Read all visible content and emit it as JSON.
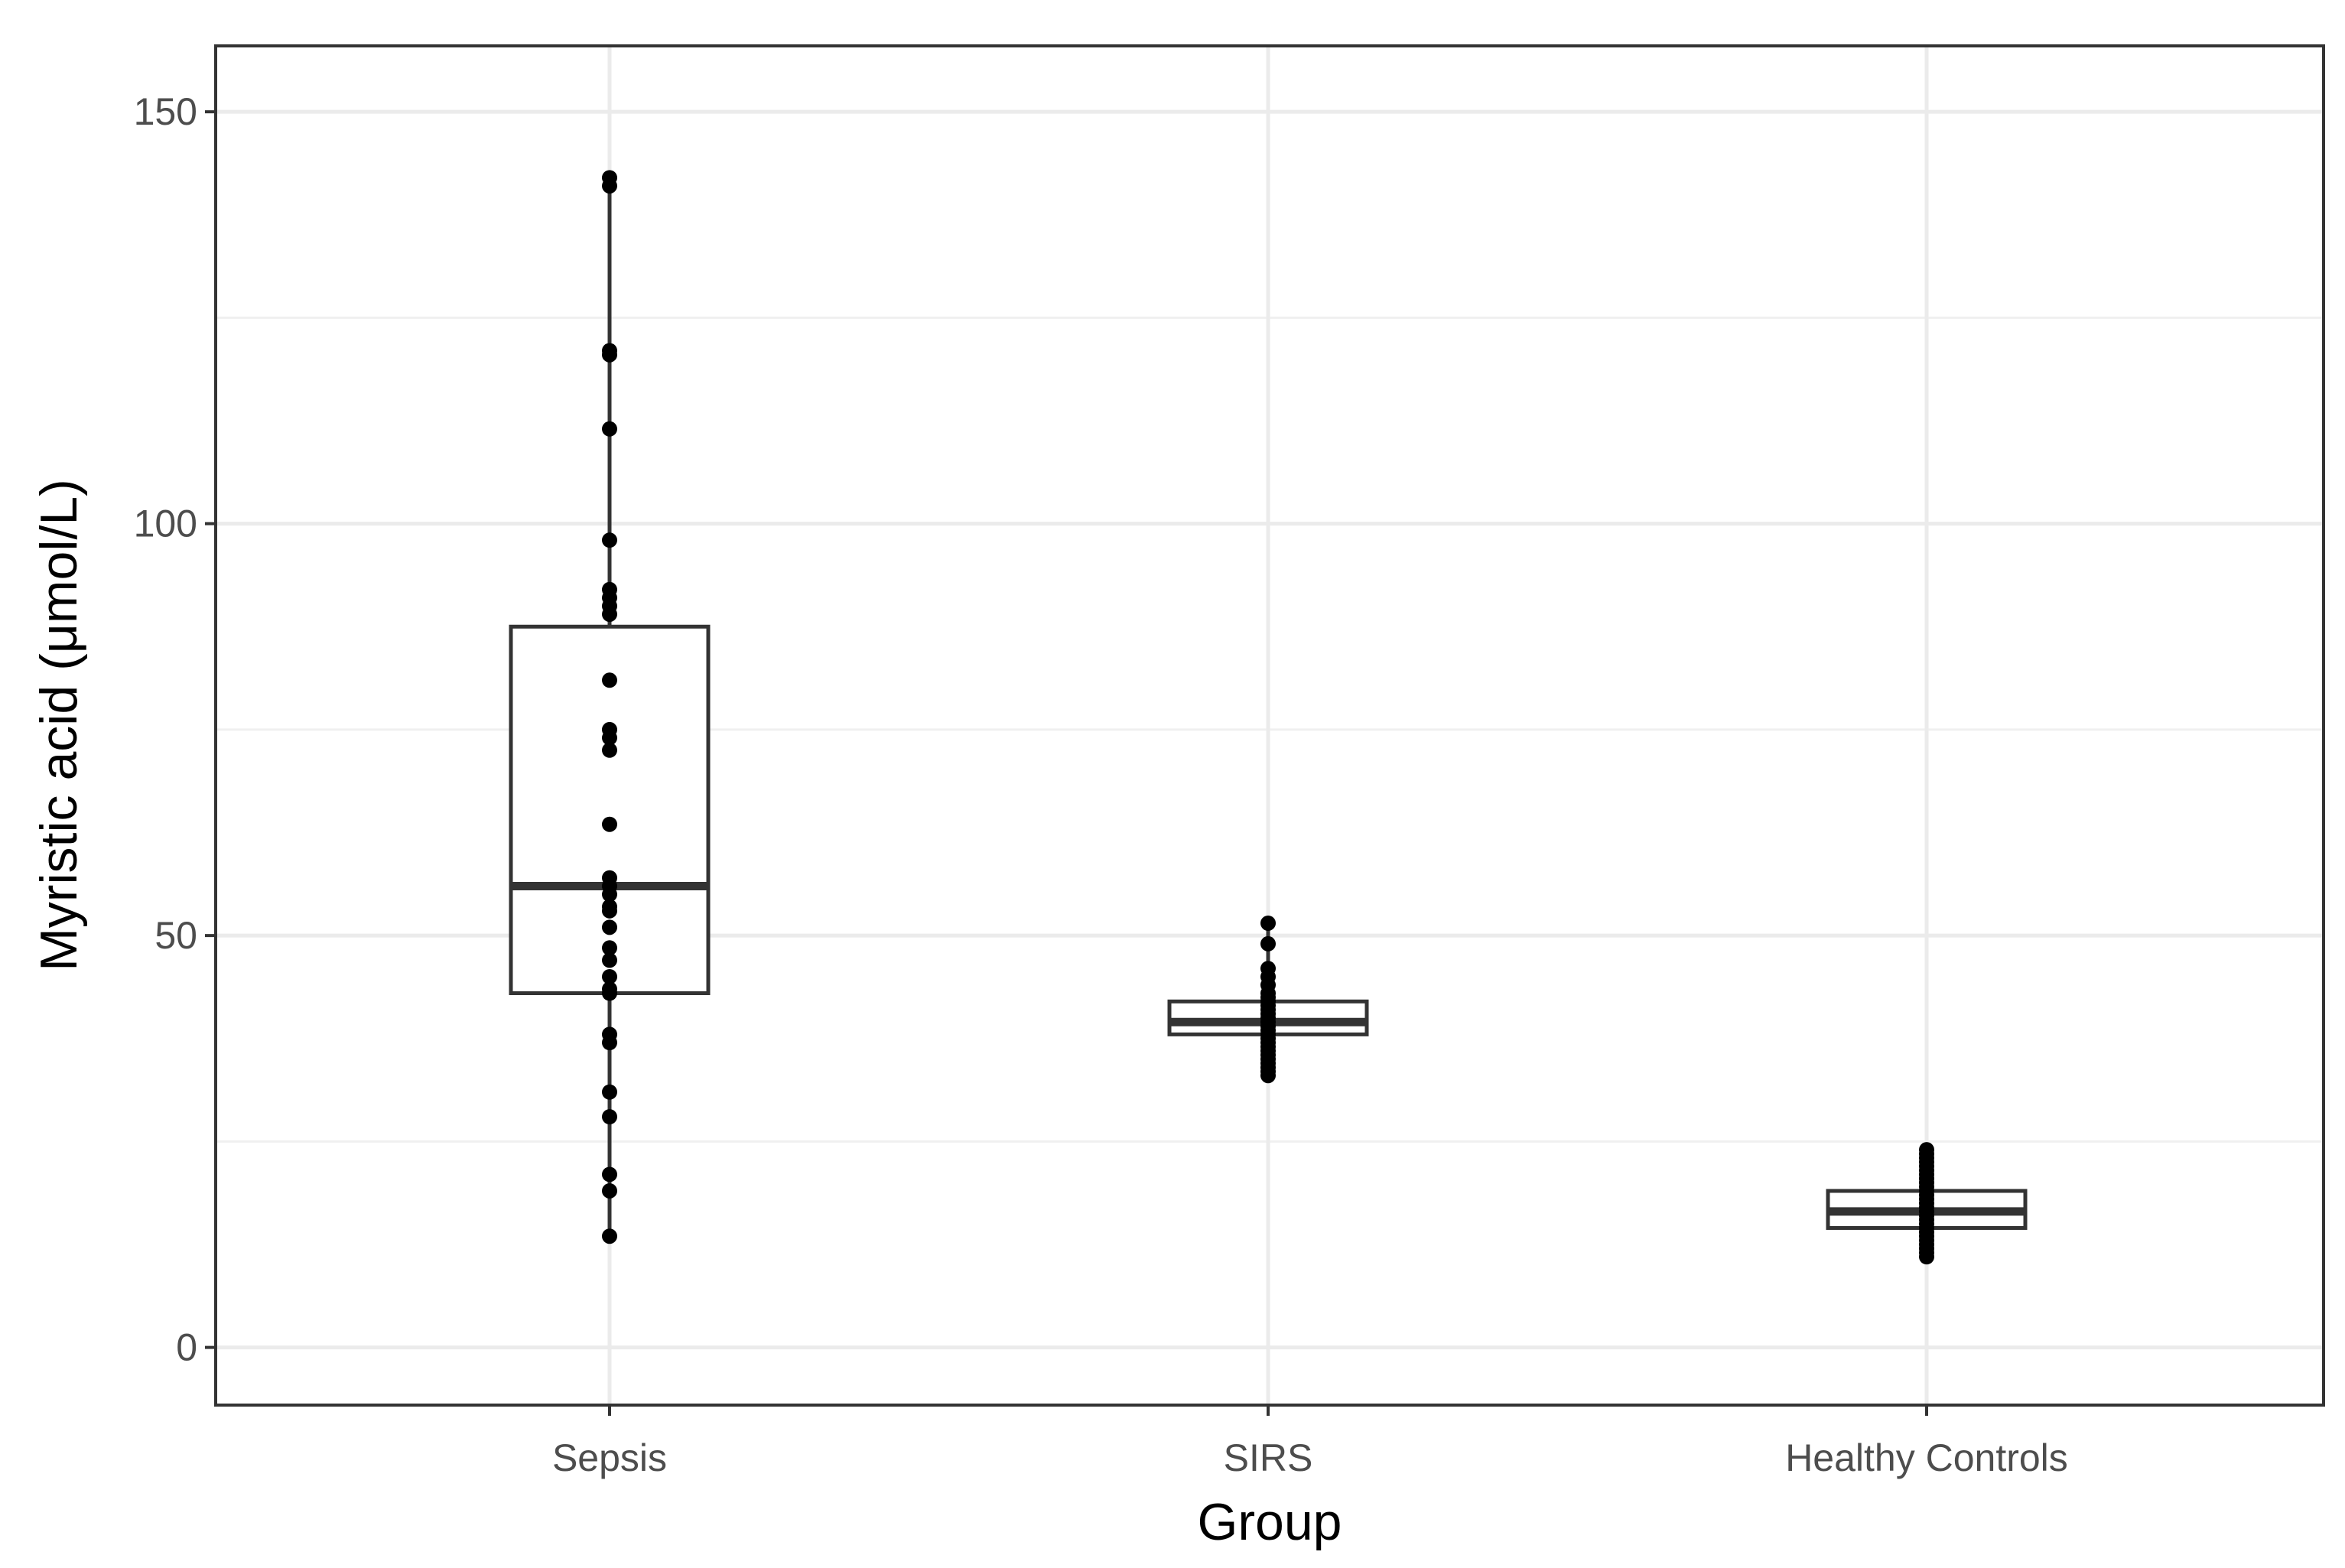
{
  "chart_data": {
    "type": "boxplot",
    "xlabel": "Group",
    "ylabel": "Myristic acid (μmol/L)",
    "ylim": [
      -7,
      158
    ],
    "y_ticks": [
      0,
      50,
      100,
      150
    ],
    "y_minor_gridlines": [
      25,
      75,
      125
    ],
    "grid": true,
    "categories": [
      "Sepsis",
      "SIRS",
      "Healthy Controls"
    ],
    "series": [
      {
        "name": "Sepsis",
        "box": {
          "min": 13.5,
          "q1": 43,
          "median": 56,
          "q3": 87.5,
          "max": 142
        },
        "points": [
          142,
          141,
          121,
          120.5,
          111.5,
          98,
          92,
          91,
          90,
          89,
          81,
          75,
          74,
          72.5,
          63.5,
          57,
          56,
          55,
          53.5,
          53,
          51,
          48.5,
          47,
          45,
          43.5,
          43,
          38,
          37,
          31,
          28,
          21,
          19,
          13.5
        ]
      },
      {
        "name": "SIRS",
        "box": {
          "min": 33,
          "q1": 38,
          "median": 39.5,
          "q3": 42,
          "max": 51.5
        },
        "points": [
          51.5,
          49,
          46,
          45,
          44,
          43,
          42.5,
          42,
          41.5,
          41,
          40.5,
          40,
          39.5,
          39,
          38.5,
          38,
          37.5,
          37,
          36.5,
          36,
          35.5,
          35,
          34.5,
          34,
          33.5,
          33
        ]
      },
      {
        "name": "Healthy Controls",
        "box": {
          "min": 11,
          "q1": 14.5,
          "median": 16.5,
          "q3": 19,
          "max": 24
        },
        "points": [
          24,
          23.5,
          23,
          22.5,
          22,
          21.5,
          21,
          20.5,
          20,
          19.5,
          19,
          18.5,
          18,
          17.5,
          17,
          16.5,
          16,
          15.5,
          15,
          14.5,
          14,
          13.5,
          13,
          12.5,
          12,
          11.5,
          11
        ]
      }
    ]
  }
}
